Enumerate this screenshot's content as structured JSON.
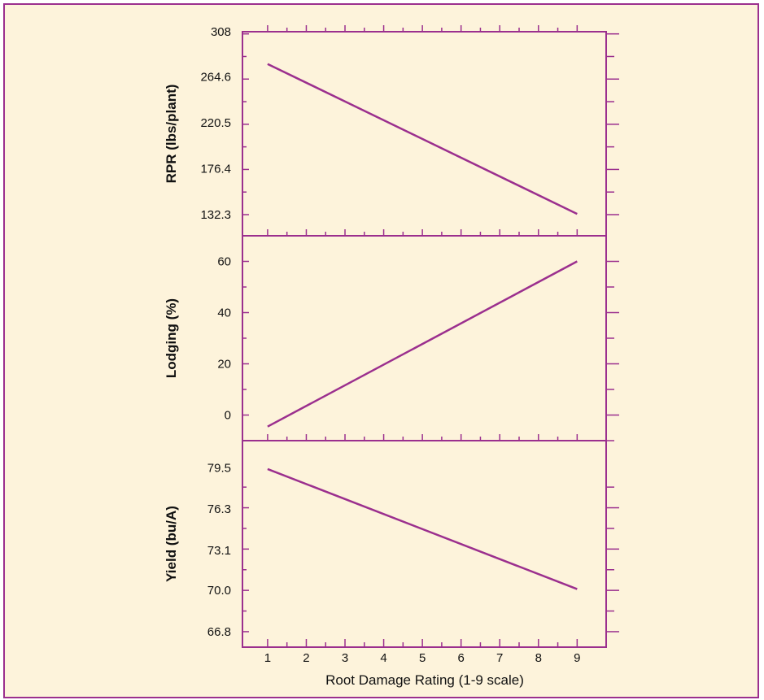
{
  "colors": {
    "background": "#fdf3db",
    "accent": "#9b2f8e",
    "text": "#111111"
  },
  "chart_data": [
    {
      "type": "line",
      "panel": "top",
      "ylabel": "RPR (lbs/plant)",
      "yticks": [
        308,
        264.6,
        220.5,
        176.4,
        132.3
      ],
      "yticks_text": [
        "308",
        "264.6",
        "220.5",
        "176.4",
        "132.3"
      ],
      "ylim": [
        112,
        308
      ],
      "xlim": [
        0.35,
        9.75
      ],
      "x": [
        1,
        9
      ],
      "values": [
        277,
        133
      ]
    },
    {
      "type": "line",
      "panel": "middle",
      "ylabel": "Lodging (%)",
      "yticks": [
        60,
        40,
        20,
        0
      ],
      "yticks_text": [
        "60",
        "40",
        "20",
        "0"
      ],
      "ylim": [
        -10,
        70
      ],
      "xlim": [
        0.35,
        9.75
      ],
      "x": [
        1,
        9
      ],
      "values": [
        -4.5,
        60
      ]
    },
    {
      "type": "line",
      "panel": "bottom",
      "ylabel": "Yield (bu/A)",
      "xlabel": "Root Damage Rating (1-9 scale)",
      "xticks": [
        1,
        2,
        3,
        4,
        5,
        6,
        7,
        8,
        9
      ],
      "xticks_text": [
        "1",
        "2",
        "3",
        "4",
        "5",
        "6",
        "7",
        "8",
        "9"
      ],
      "yticks": [
        79.5,
        76.3,
        73.1,
        70.0,
        66.8
      ],
      "yticks_text": [
        "79.5",
        "76.3",
        "73.1",
        "70.0",
        "66.8"
      ],
      "ylim": [
        65.6,
        81.6
      ],
      "xlim": [
        0.35,
        9.75
      ],
      "x": [
        1,
        9
      ],
      "values": [
        79.4,
        70.1
      ]
    }
  ]
}
